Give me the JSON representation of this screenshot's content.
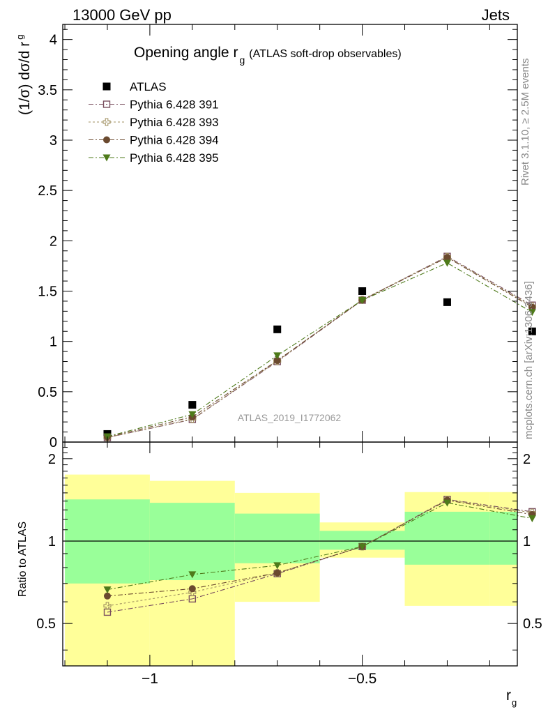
{
  "header": {
    "left": "13000 GeV pp",
    "right": "Jets"
  },
  "side_labels": {
    "rivet": "Rivet 3.1.10, ≥ 2.5M events",
    "mcplots": "mcplots.cern.ch [arXiv:1306.3436]"
  },
  "watermark": "ATLAS_2019_I1772062",
  "chart_data": [
    {
      "type": "scatter",
      "title_main": "Opening angle r",
      "title_sub": "g",
      "title_extra": "(ATLAS soft-drop observables)",
      "ylabel_main": "(1/σ) dσ/d r",
      "ylabel_sub": "g",
      "ylim": [
        0,
        4.15
      ],
      "yticks": [
        0,
        0.5,
        1,
        1.5,
        2,
        2.5,
        3,
        3.5,
        4
      ],
      "ytick_labels": [
        "0",
        "0.5",
        "1",
        "1.5",
        "2",
        "2.5",
        "3",
        "3.5",
        "4"
      ],
      "xlim": [
        -1.205,
        -0.135
      ],
      "x": [
        -1.1,
        -0.9,
        -0.7,
        -0.5,
        -0.3,
        -0.1
      ],
      "series": [
        {
          "name": "ATLAS",
          "values": [
            0.08,
            0.37,
            1.12,
            1.5,
            1.39,
            1.1
          ],
          "color": "#000000",
          "marker": "square-filled",
          "line": "none"
        },
        {
          "name": "Pythia 6.428 391",
          "values": [
            0.045,
            0.225,
            0.8,
            1.41,
            1.845,
            1.36
          ],
          "color": "#7a4f5f",
          "marker": "square-open",
          "line": "dashdot"
        },
        {
          "name": "Pythia 6.428 393",
          "values": [
            0.045,
            0.23,
            0.805,
            1.415,
            1.84,
            1.35
          ],
          "color": "#a09060",
          "marker": "plus-open",
          "line": "dotted"
        },
        {
          "name": "Pythia 6.428 394",
          "values": [
            0.05,
            0.25,
            0.81,
            1.41,
            1.835,
            1.34
          ],
          "color": "#6b4a2f",
          "marker": "circle-filled",
          "line": "dashdot"
        },
        {
          "name": "Pythia 6.428 395",
          "values": [
            0.055,
            0.275,
            0.86,
            1.41,
            1.78,
            1.29
          ],
          "color": "#4e7a1a",
          "marker": "triangle-down-filled",
          "line": "dashdot"
        }
      ]
    },
    {
      "type": "scatter",
      "ylabel": "Ratio to ATLAS",
      "xlabel_main": "r",
      "xlabel_sub": "g",
      "ylim": [
        0.35,
        2.3
      ],
      "log_y": true,
      "yticks": [
        0.5,
        1,
        2
      ],
      "ytick_labels": [
        "0.5",
        "1",
        "2"
      ],
      "xlim": [
        -1.205,
        -0.135
      ],
      "xticks": [
        -1,
        -0.5
      ],
      "xtick_labels": [
        "−1",
        "−0.5"
      ],
      "x": [
        -1.1,
        -0.9,
        -0.7,
        -0.5,
        -0.3,
        -0.1
      ],
      "bands": [
        {
          "x0": -1.2,
          "x1": -1.0,
          "yellow": [
            0.35,
            1.75
          ],
          "green": [
            0.7,
            1.42
          ]
        },
        {
          "x0": -1.0,
          "x1": -0.8,
          "yellow": [
            0.35,
            1.66
          ],
          "green": [
            0.72,
            1.38
          ]
        },
        {
          "x0": -0.8,
          "x1": -0.6,
          "yellow": [
            0.6,
            1.5
          ],
          "green": [
            0.83,
            1.26
          ]
        },
        {
          "x0": -0.6,
          "x1": -0.4,
          "yellow": [
            0.87,
            1.17
          ],
          "green": [
            0.93,
            1.09
          ]
        },
        {
          "x0": -0.4,
          "x1": -0.2,
          "yellow": [
            0.58,
            1.51
          ],
          "green": [
            0.82,
            1.28
          ]
        },
        {
          "x0": -0.2,
          "x1": 0.0,
          "yellow": [
            0.58,
            1.51
          ],
          "green": [
            0.82,
            1.28
          ]
        }
      ],
      "series": [
        {
          "name": "Pythia 6.428 391",
          "values": [
            0.55,
            0.615,
            0.76,
            0.955,
            1.42,
            1.28
          ],
          "color": "#7a4f5f",
          "marker": "square-open",
          "line": "dashdot"
        },
        {
          "name": "Pythia 6.428 393",
          "values": [
            0.58,
            0.65,
            0.765,
            0.955,
            1.415,
            1.27
          ],
          "color": "#a09060",
          "marker": "plus-open",
          "line": "dotted"
        },
        {
          "name": "Pythia 6.428 394",
          "values": [
            0.63,
            0.67,
            0.765,
            0.955,
            1.41,
            1.25
          ],
          "color": "#6b4a2f",
          "marker": "circle-filled",
          "line": "dashdot"
        },
        {
          "name": "Pythia 6.428 395",
          "values": [
            0.665,
            0.755,
            0.815,
            0.955,
            1.38,
            1.21
          ],
          "color": "#4e7a1a",
          "marker": "triangle-down-filled",
          "line": "dashdot"
        }
      ]
    }
  ]
}
